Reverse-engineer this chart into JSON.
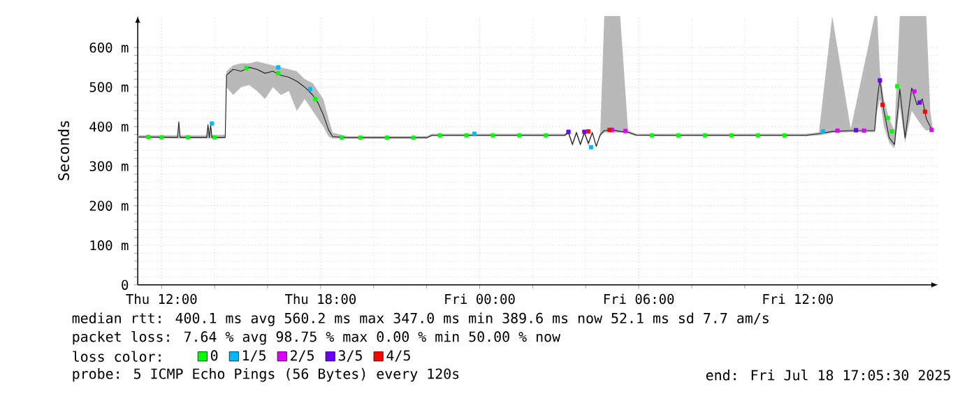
{
  "chart_data": {
    "type": "line",
    "ylabel": "Seconds",
    "legend_title": "loss color:",
    "legend": "bottom left",
    "grid": true,
    "xlim": [
      "2025-07-17T11:06",
      "2025-07-18T17:18"
    ],
    "ylim": [
      0,
      680
    ],
    "xticks": [
      {
        "value": "2025-07-17T12:00",
        "label": "Thu 12:00"
      },
      {
        "value": "2025-07-17T18:00",
        "label": "Thu 18:00"
      },
      {
        "value": "2025-07-18T00:00",
        "label": "Fri 00:00"
      },
      {
        "value": "2025-07-18T06:00",
        "label": "Fri 06:00"
      },
      {
        "value": "2025-07-18T12:00",
        "label": "Fri 12:00"
      }
    ],
    "yticks": [
      0,
      {
        "value": 100,
        "label": "100 m"
      },
      {
        "value": 200,
        "label": "200 m"
      },
      {
        "value": 300,
        "label": "300 m"
      },
      {
        "value": 400,
        "label": "400 m"
      },
      {
        "value": 500,
        "label": "500 m"
      },
      {
        "value": 600,
        "label": "600 m"
      }
    ],
    "series": [
      {
        "color": "#222222",
        "marker": "none",
        "x": [
          "2025-07-17T11:06",
          "2025-07-17T12:36",
          "2025-07-17T12:39",
          "2025-07-17T12:42",
          "2025-07-17T13:42",
          "2025-07-17T13:45",
          "2025-07-17T13:48",
          "2025-07-17T13:51",
          "2025-07-17T13:54",
          "2025-07-17T14:24",
          "2025-07-17T14:27",
          "2025-07-17T14:42",
          "2025-07-17T15:00",
          "2025-07-17T15:18",
          "2025-07-17T15:36",
          "2025-07-17T15:54",
          "2025-07-17T16:12",
          "2025-07-17T16:30",
          "2025-07-17T16:48",
          "2025-07-17T17:06",
          "2025-07-17T17:24",
          "2025-07-17T17:42",
          "2025-07-17T17:54",
          "2025-07-17T18:06",
          "2025-07-17T18:18",
          "2025-07-17T18:27",
          "2025-07-17T19:00",
          "2025-07-17T20:00",
          "2025-07-17T21:00",
          "2025-07-17T22:00",
          "2025-07-17T22:12",
          "2025-07-18T00:00",
          "2025-07-18T02:00",
          "2025-07-18T03:12",
          "2025-07-18T03:21",
          "2025-07-18T03:30",
          "2025-07-18T03:39",
          "2025-07-18T03:48",
          "2025-07-18T03:57",
          "2025-07-18T04:06",
          "2025-07-18T04:15",
          "2025-07-18T04:24",
          "2025-07-18T04:33",
          "2025-07-18T04:42",
          "2025-07-18T05:00",
          "2025-07-18T05:18",
          "2025-07-18T05:36",
          "2025-07-18T05:54",
          "2025-07-18T07:00",
          "2025-07-18T09:00",
          "2025-07-18T11:00",
          "2025-07-18T12:18",
          "2025-07-18T12:48",
          "2025-07-18T13:18",
          "2025-07-18T14:00",
          "2025-07-18T14:54",
          "2025-07-18T15:00",
          "2025-07-18T15:06",
          "2025-07-18T15:15",
          "2025-07-18T15:27",
          "2025-07-18T15:39",
          "2025-07-18T15:51",
          "2025-07-18T16:03",
          "2025-07-18T16:18",
          "2025-07-18T16:30",
          "2025-07-18T16:42",
          "2025-07-18T16:51",
          "2025-07-18T17:00",
          "2025-07-18T17:05"
        ],
        "values": [
          374,
          373,
          412,
          373,
          373,
          405,
          373,
          405,
          373,
          373,
          530,
          545,
          540,
          550,
          545,
          535,
          540,
          530,
          525,
          515,
          500,
          480,
          460,
          430,
          392,
          375,
          372,
          372,
          372,
          372,
          378,
          378,
          378,
          378,
          385,
          355,
          385,
          355,
          385,
          358,
          385,
          350,
          380,
          390,
          392,
          388,
          386,
          379,
          378,
          378,
          378,
          378,
          382,
          388,
          390,
          390,
          470,
          520,
          440,
          372,
          355,
          495,
          372,
          498,
          455,
          470,
          420,
          400,
          392
        ],
        "lower": [
          371,
          370,
          370,
          370,
          370,
          370,
          370,
          370,
          370,
          370,
          500,
          480,
          500,
          505,
          490,
          470,
          500,
          480,
          490,
          440,
          470,
          440,
          420,
          400,
          375,
          370,
          370,
          370,
          370,
          370,
          376,
          376,
          376,
          376,
          380,
          350,
          380,
          350,
          380,
          350,
          380,
          348,
          375,
          385,
          385,
          385,
          383,
          376,
          376,
          376,
          376,
          376,
          378,
          384,
          386,
          386,
          440,
          470,
          400,
          360,
          345,
          450,
          360,
          440,
          420,
          400,
          390,
          392,
          390
        ],
        "upper": [
          378,
          378,
          415,
          378,
          378,
          408,
          378,
          408,
          378,
          380,
          540,
          555,
          560,
          560,
          565,
          560,
          555,
          550,
          545,
          540,
          520,
          510,
          490,
          470,
          420,
          385,
          376,
          376,
          376,
          376,
          382,
          382,
          382,
          382,
          390,
          360,
          390,
          360,
          390,
          362,
          390,
          355,
          385,
          680,
          680,
          680,
          390,
          382,
          382,
          382,
          382,
          382,
          386,
          680,
          394,
          680,
          680,
          540,
          470,
          420,
          390,
          680,
          680,
          680,
          680,
          680,
          680,
          440,
          400
        ]
      },
      {
        "type": "scatter",
        "name": "0",
        "color": "#00ff00",
        "marker": "square",
        "x": [
          "2025-07-17T11:30",
          "2025-07-17T12:00",
          "2025-07-17T13:00",
          "2025-07-17T14:00",
          "2025-07-17T15:12",
          "2025-07-17T16:24",
          "2025-07-17T17:48",
          "2025-07-17T18:48",
          "2025-07-17T19:30",
          "2025-07-17T20:30",
          "2025-07-17T21:30",
          "2025-07-17T22:30",
          "2025-07-17T23:30",
          "2025-07-18T00:30",
          "2025-07-18T01:30",
          "2025-07-18T02:30",
          "2025-07-18T06:30",
          "2025-07-18T07:30",
          "2025-07-18T08:30",
          "2025-07-18T09:30",
          "2025-07-18T10:30",
          "2025-07-18T11:30",
          "2025-07-18T15:24",
          "2025-07-18T15:33",
          "2025-07-18T15:45"
        ],
        "values": [
          374,
          373,
          373,
          373,
          548,
          535,
          470,
          372,
          372,
          372,
          372,
          378,
          378,
          378,
          378,
          378,
          378,
          378,
          378,
          378,
          378,
          378,
          422,
          388,
          502
        ]
      },
      {
        "type": "scatter",
        "name": "1/5",
        "color": "#00b8ff",
        "marker": "square",
        "x": [
          "2025-07-17T13:54",
          "2025-07-17T16:24",
          "2025-07-17T17:36",
          "2025-07-17T23:48",
          "2025-07-18T04:12",
          "2025-07-18T12:57"
        ],
        "values": [
          408,
          550,
          495,
          382,
          348,
          388
        ]
      },
      {
        "type": "scatter",
        "name": "2/5",
        "color": "#dd00ff",
        "marker": "square",
        "x": [
          "2025-07-18T05:00",
          "2025-07-18T05:30",
          "2025-07-18T13:30",
          "2025-07-18T14:30",
          "2025-07-18T16:24",
          "2025-07-18T17:03"
        ],
        "values": [
          392,
          389,
          390,
          390,
          489,
          392
        ]
      },
      {
        "type": "scatter",
        "name": "3/5",
        "color": "#6a00ff",
        "marker": "square",
        "x": [
          "2025-07-18T03:21",
          "2025-07-18T03:57",
          "2025-07-18T14:12",
          "2025-07-18T15:06",
          "2025-07-18T16:36"
        ],
        "values": [
          387,
          387,
          391,
          517,
          461
        ]
      },
      {
        "type": "scatter",
        "name": "4/5",
        "color": "#ff0000",
        "marker": "square",
        "x": [
          "2025-07-18T04:06",
          "2025-07-18T04:54",
          "2025-07-18T15:12",
          "2025-07-18T16:48"
        ],
        "values": [
          388,
          392,
          455,
          438
        ]
      }
    ],
    "annotations": [
      "median rtt: 400.1 ms avg 560.2 ms max 347.0 ms min 389.6 ms now 52.1 ms sd 7.7 am/s",
      "packet loss: 7.64 % avg 98.75 % max 0.00 % min 50.00 % now",
      "probe: 5 ICMP Echo Pings (56 Bytes) every 120s",
      "end: Fri Jul 18 17:05:30 2025"
    ]
  }
}
